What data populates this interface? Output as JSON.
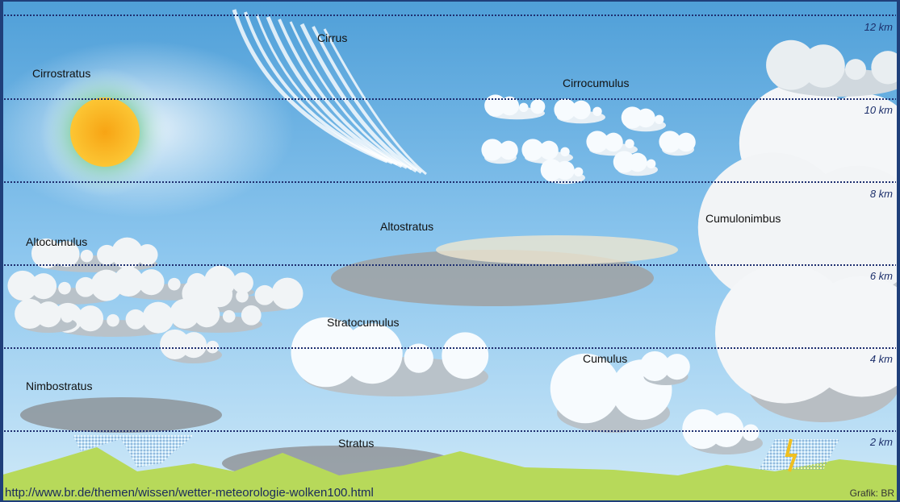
{
  "cloud_labels": [
    "Cirrus",
    "Cirrostratus",
    "Cirrocumulus",
    "Cumulonimbus",
    "Altostratus",
    "Altocumulus",
    "Stratocumulus",
    "Cumulus",
    "Nimbostratus",
    "Stratus"
  ],
  "altitude_labels": [
    "12 km",
    "10 km",
    "8 km",
    "6 km",
    "4 km",
    "2 km"
  ],
  "source_url": "http://www.br.de/themen/wissen/wetter-meteorologie-wolken100.html",
  "credit": "Grafik: BR"
}
